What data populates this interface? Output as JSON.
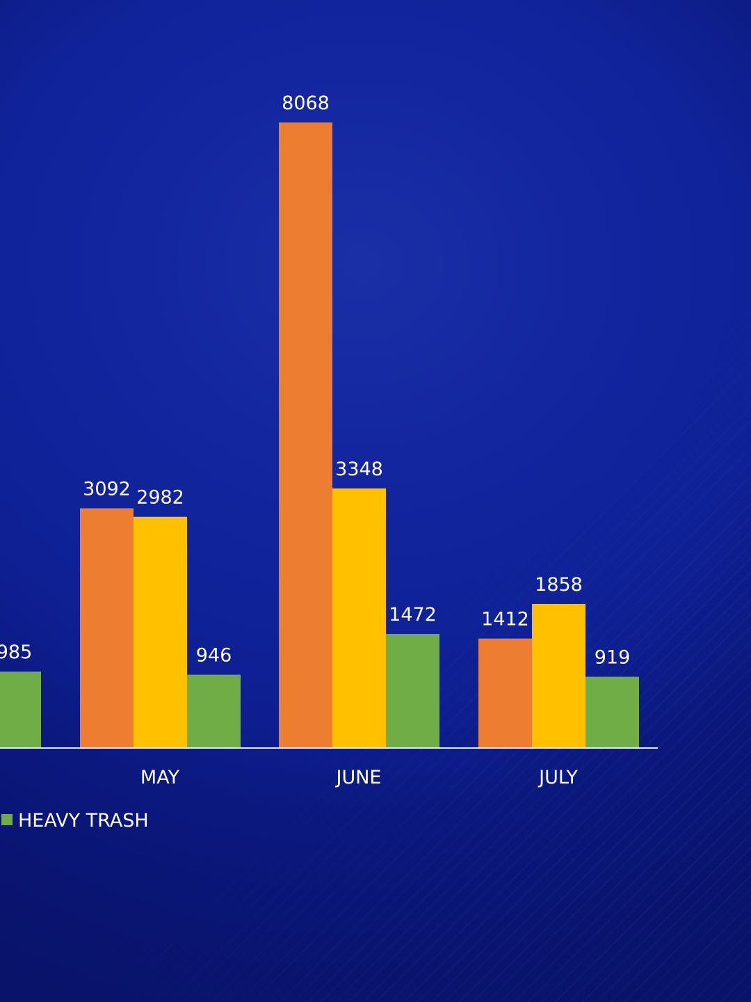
{
  "chart_data": {
    "type": "bar",
    "categories": [
      "",
      "MAY",
      "JUNE",
      "JULY"
    ],
    "series": [
      {
        "name": "",
        "color": "#ed7d31",
        "values": [
          null,
          3092,
          8068,
          1412
        ]
      },
      {
        "name": "",
        "color": "#ffc000",
        "values": [
          null,
          2982,
          3348,
          1858
        ]
      },
      {
        "name": "HEAVY TRASH",
        "color": "#70ad47",
        "values": [
          985,
          946,
          1472,
          919
        ]
      }
    ],
    "value_labels": {
      "partial_first_group": "985"
    },
    "legend_position": "bottom",
    "ylim": [
      0,
      8068
    ],
    "grid": false
  }
}
